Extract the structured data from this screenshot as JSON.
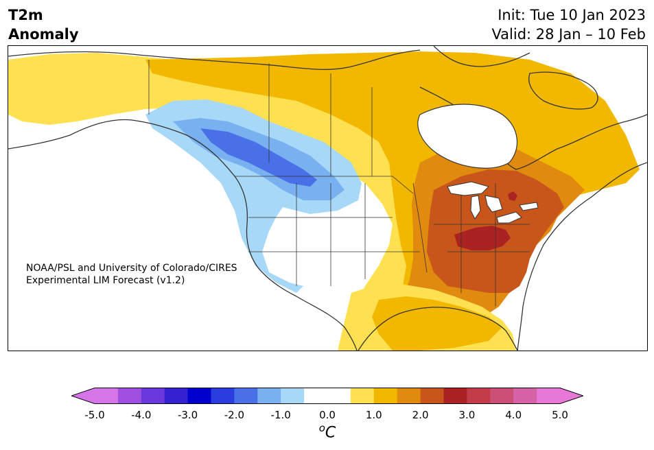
{
  "title": {
    "left_line1": "T2m",
    "left_line2": "Anomaly",
    "init": "Init: Tue 10 Jan 2023",
    "valid": "Valid: 28 Jan – 10 Feb"
  },
  "credit": {
    "line1": "NOAA/PSL and University of Colorado/CIRES",
    "line2": "Experimental LIM Forecast (v1.2)"
  },
  "colorbar": {
    "unit_base": "C",
    "unit_sup": "o",
    "ticks": [
      "-5.0",
      "-4.0",
      "-3.0",
      "-2.0",
      "-1.0",
      "0.0",
      "1.0",
      "2.0",
      "3.0",
      "4.0",
      "5.0"
    ],
    "min_color": "#d575e8",
    "max_color": "#e878d8",
    "colors": [
      "#d575e8",
      "#a04fe0",
      "#6a38dc",
      "#3422d0",
      "#0000cc",
      "#2a3ee0",
      "#4a70e8",
      "#78b0f0",
      "#a8d8f8",
      "#ffffff",
      "#ffffff",
      "#ffe050",
      "#f2b800",
      "#e08a10",
      "#c8561a",
      "#aa2222",
      "#c23c4a",
      "#cc4f78",
      "#d862a8",
      "#e878d8"
    ]
  },
  "map": {
    "colors": {
      "land_zero": "#ffffff",
      "warm1": "#ffe050",
      "warm2": "#f2b800",
      "warm3": "#e08a10",
      "warm4": "#c8561a",
      "warm5": "#aa2222",
      "cool1": "#a8d8f8",
      "cool2": "#78b0f0",
      "cool3": "#4a70e8",
      "coast": "#333333"
    }
  }
}
